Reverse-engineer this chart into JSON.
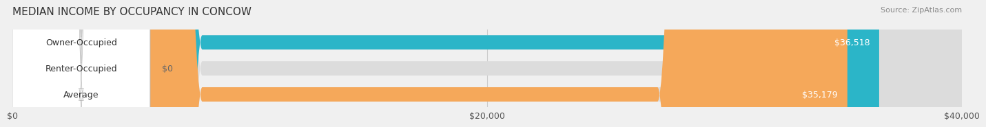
{
  "title": "MEDIAN INCOME BY OCCUPANCY IN CONCOW",
  "source": "Source: ZipAtlas.com",
  "categories": [
    "Owner-Occupied",
    "Renter-Occupied",
    "Average"
  ],
  "values": [
    36518,
    0,
    35179
  ],
  "labels": [
    "$36,518",
    "$0",
    "$35,179"
  ],
  "bar_colors": [
    "#2bb5c8",
    "#c9aed6",
    "#f5a85a"
  ],
  "bar_edge_colors": [
    "#2bb5c8",
    "#c9aed6",
    "#f5a85a"
  ],
  "background_color": "#f0f0f0",
  "bar_bg_color": "#e8e8e8",
  "xlim": [
    0,
    40000
  ],
  "xticks": [
    0,
    20000,
    40000
  ],
  "xticklabels": [
    "$0",
    "$20,000",
    "$40,000"
  ],
  "bar_height": 0.55,
  "label_font_size": 9,
  "title_font_size": 11,
  "source_font_size": 8
}
